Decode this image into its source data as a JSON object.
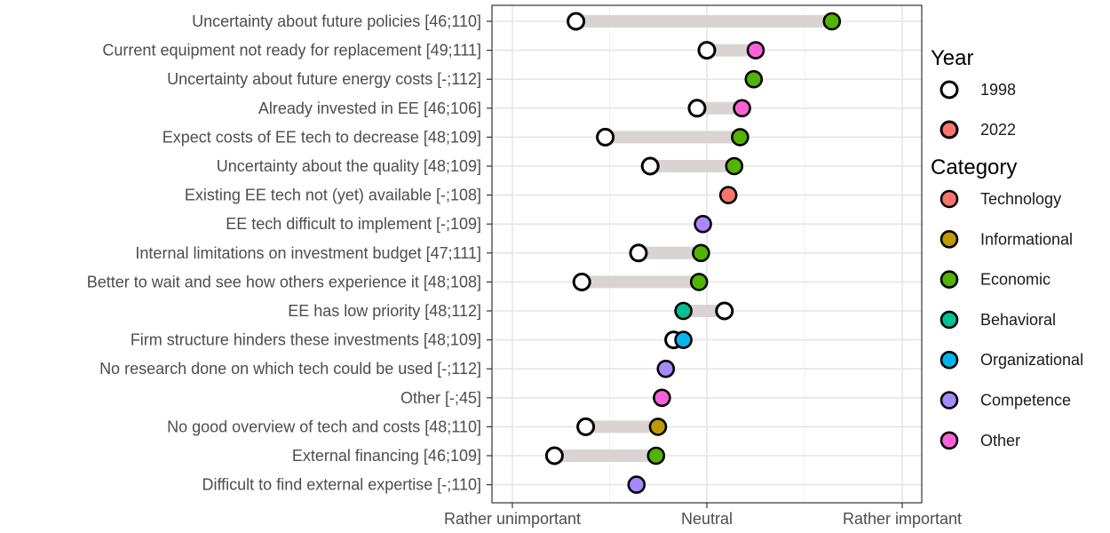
{
  "chart_data": {
    "type": "scatter",
    "subtype": "dumbbell",
    "x_ticks": [
      "Rather unimportant",
      "Neutral",
      "Rather important"
    ],
    "xlim": [
      -1.05,
      1.0
    ],
    "grid": true,
    "legend_position": "right",
    "categories": [
      "Uncertainty about future policies [46;110]",
      "Current equipment not ready for replacement [49;111]",
      "Uncertainty about future energy costs [-;112]",
      "Already invested in EE [46;106]",
      "Expect costs of EE tech to decrease [48;109]",
      "Uncertainty about the quality [48;109]",
      "Existing EE tech not (yet) available [-;108]",
      "EE tech difficult to implement [-;109]",
      "Internal limitations on investment budget [47;111]",
      "Better to wait and see how others experience it [48;108]",
      "EE has low priority [48;112]",
      "Firm structure hinders these investments [48;109]",
      "No research done on which tech could be used [-;112]",
      "Other [-;45]",
      "No good overview of tech and costs [48;110]",
      "External financing [46;109]",
      "Difficult to find external expertise [-;110]"
    ],
    "series": [
      {
        "name": "1998",
        "values": [
          -0.67,
          0.0,
          null,
          -0.05,
          -0.52,
          -0.29,
          null,
          null,
          -0.35,
          -0.64,
          0.09,
          -0.17,
          null,
          null,
          -0.62,
          -0.78,
          null
        ]
      },
      {
        "name": "2022",
        "values": [
          0.64,
          0.25,
          0.24,
          0.18,
          0.17,
          0.14,
          0.11,
          -0.02,
          -0.03,
          -0.04,
          -0.12,
          -0.12,
          -0.21,
          -0.23,
          -0.25,
          -0.26,
          -0.36
        ]
      }
    ],
    "point_category": [
      "Economic",
      "Other",
      "Economic",
      "Other",
      "Economic",
      "Economic",
      "Technology",
      "Competence",
      "Economic",
      "Economic",
      "Behavioral",
      "Organizational",
      "Competence",
      "Other",
      "Informational",
      "Economic",
      "Competence"
    ],
    "legend": {
      "year_title": "Year",
      "years": [
        {
          "label": "1998",
          "fill": "#ffffff"
        },
        {
          "label": "2022",
          "fill": "#f8766d"
        }
      ],
      "category_title": "Category",
      "category_items": [
        {
          "label": "Technology",
          "color": "#f8766d"
        },
        {
          "label": "Informational",
          "color": "#c09b00"
        },
        {
          "label": "Economic",
          "color": "#53b400"
        },
        {
          "label": "Behavioral",
          "color": "#00c094"
        },
        {
          "label": "Organizational",
          "color": "#00b6eb"
        },
        {
          "label": "Competence",
          "color": "#a58aff"
        },
        {
          "label": "Other",
          "color": "#fb61d7"
        }
      ]
    }
  }
}
